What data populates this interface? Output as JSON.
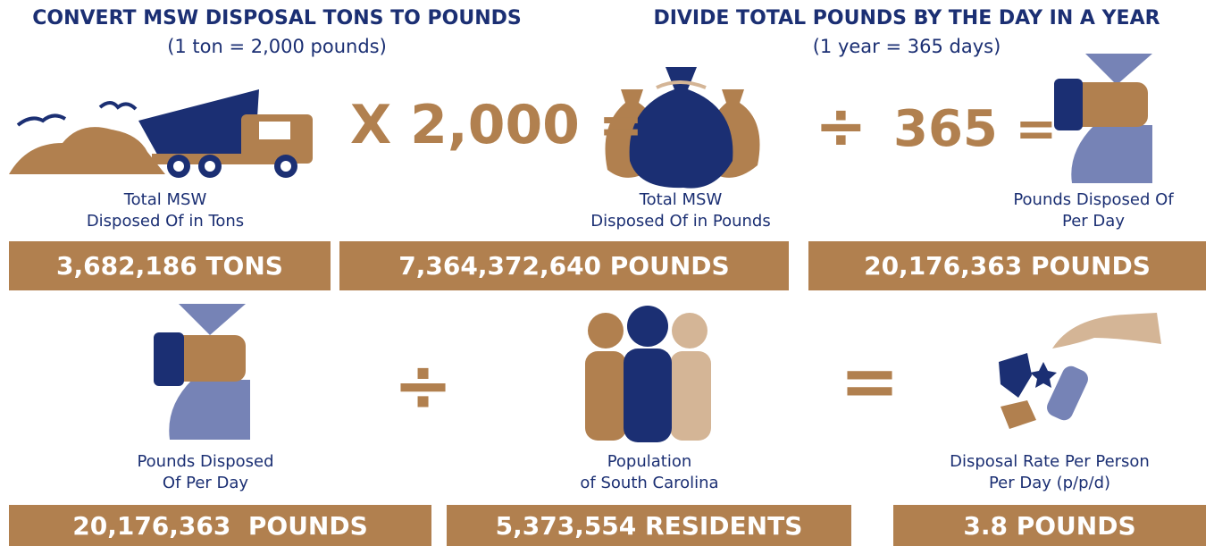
{
  "top": {
    "left_heading": {
      "title": "CONVERT MSW DISPOSAL TONS TO POUNDS",
      "subtitle": "(1 ton = 2,000 pounds)"
    },
    "right_heading": {
      "title": "DIVIDE TOTAL POUNDS BY THE DAY IN A YEAR",
      "subtitle": "(1 year = 365 days)"
    },
    "operators": [
      "X 2,000 =",
      "÷",
      "365 ="
    ],
    "items": [
      {
        "label_lines": [
          "Total MSW",
          "Disposed Of in Tons"
        ],
        "value": "3,682,186 TONS"
      },
      {
        "label_lines": [
          "Total MSW",
          "Disposed Of in Pounds"
        ],
        "value": "7,364,372,640 POUNDS"
      },
      {
        "label_lines": [
          "Pounds Disposed Of",
          "Per Day"
        ],
        "value": "20,176,363 POUNDS"
      }
    ]
  },
  "bottom": {
    "operators": [
      "÷",
      "="
    ],
    "items": [
      {
        "label_lines": [
          "Pounds Disposed",
          "Of Per Day"
        ],
        "value": "20,176,363  POUNDS"
      },
      {
        "label_lines": [
          "Population",
          "of South Carolina"
        ],
        "value": "5,373,554 RESIDENTS"
      },
      {
        "label_lines": [
          "Disposal Rate Per Person",
          "Per Day (p/p/d)"
        ],
        "value": "3.8 POUNDS"
      }
    ]
  }
}
